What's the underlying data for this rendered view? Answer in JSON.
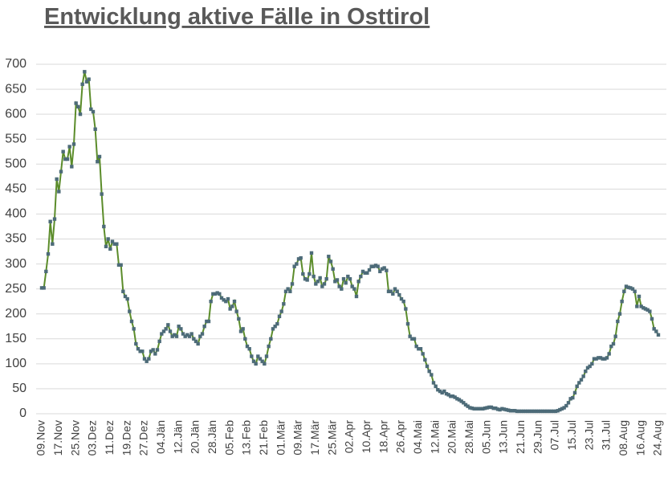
{
  "chart_data": {
    "type": "line",
    "title": "Entwicklung aktive Fälle in Osttirol",
    "categories": [
      "09.Nov",
      null,
      null,
      null,
      null,
      null,
      null,
      null,
      "17.Nov",
      null,
      null,
      null,
      null,
      null,
      null,
      null,
      "25.Nov",
      null,
      null,
      null,
      null,
      null,
      null,
      null,
      "03.Dez",
      null,
      null,
      null,
      null,
      null,
      null,
      null,
      "11.Dez",
      null,
      null,
      null,
      null,
      null,
      null,
      null,
      "19.Dez",
      null,
      null,
      null,
      null,
      null,
      null,
      null,
      "27.Dez",
      null,
      null,
      null,
      null,
      null,
      null,
      null,
      "04.Jän",
      null,
      null,
      null,
      null,
      null,
      null,
      null,
      "12.Jän",
      null,
      null,
      null,
      null,
      null,
      null,
      null,
      "20.Jän",
      null,
      null,
      null,
      null,
      null,
      null,
      null,
      "28.Jän",
      null,
      null,
      null,
      null,
      null,
      null,
      null,
      "05.Feb",
      null,
      null,
      null,
      null,
      null,
      null,
      null,
      "13.Feb",
      null,
      null,
      null,
      null,
      null,
      null,
      null,
      "21.Feb",
      null,
      null,
      null,
      null,
      null,
      null,
      null,
      "01.Mär",
      null,
      null,
      null,
      null,
      null,
      null,
      null,
      "09.Mär",
      null,
      null,
      null,
      null,
      null,
      null,
      null,
      "17.Mär",
      null,
      null,
      null,
      null,
      null,
      null,
      null,
      "25.Mär",
      null,
      null,
      null,
      null,
      null,
      null,
      null,
      "02.Apr",
      null,
      null,
      null,
      null,
      null,
      null,
      null,
      "10.Apr",
      null,
      null,
      null,
      null,
      null,
      null,
      null,
      "18.Apr",
      null,
      null,
      null,
      null,
      null,
      null,
      null,
      "26.Apr",
      null,
      null,
      null,
      null,
      null,
      null,
      null,
      "04.Mai",
      null,
      null,
      null,
      null,
      null,
      null,
      null,
      "12.Mai",
      null,
      null,
      null,
      null,
      null,
      null,
      null,
      "20.Mai",
      null,
      null,
      null,
      null,
      null,
      null,
      null,
      "28.Mai",
      null,
      null,
      null,
      null,
      null,
      null,
      null,
      "05.Jun",
      null,
      null,
      null,
      null,
      null,
      null,
      null,
      "13.Jun",
      null,
      null,
      null,
      null,
      null,
      null,
      null,
      "21.Jun",
      null,
      null,
      null,
      null,
      null,
      null,
      null,
      "29.Jun",
      null,
      null,
      null,
      null,
      null,
      null,
      null,
      "07.Jul",
      null,
      null,
      null,
      null,
      null,
      null,
      null,
      "15.Jul",
      null,
      null,
      null,
      null,
      null,
      null,
      null,
      "23.Jul",
      null,
      null,
      null,
      null,
      null,
      null,
      null,
      "31.Jul",
      null,
      null,
      null,
      null,
      null,
      null,
      null,
      "08.Aug",
      null,
      null,
      null,
      null,
      null,
      null,
      null,
      "16.Aug",
      null,
      null,
      null,
      null,
      null,
      null,
      null,
      "24.Aug"
    ],
    "values": [
      252,
      252,
      285,
      320,
      385,
      340,
      390,
      470,
      445,
      485,
      525,
      510,
      510,
      535,
      495,
      540,
      622,
      615,
      600,
      660,
      685,
      665,
      670,
      610,
      605,
      570,
      505,
      515,
      440,
      375,
      335,
      350,
      330,
      345,
      340,
      340,
      298,
      298,
      245,
      235,
      230,
      205,
      185,
      170,
      140,
      130,
      125,
      125,
      110,
      105,
      110,
      125,
      128,
      120,
      128,
      145,
      160,
      165,
      170,
      178,
      165,
      155,
      158,
      155,
      175,
      170,
      160,
      155,
      158,
      155,
      160,
      150,
      145,
      140,
      155,
      160,
      175,
      185,
      185,
      225,
      240,
      240,
      242,
      240,
      232,
      228,
      225,
      230,
      210,
      215,
      225,
      205,
      190,
      165,
      170,
      150,
      135,
      130,
      115,
      105,
      100,
      115,
      110,
      105,
      100,
      115,
      135,
      150,
      170,
      175,
      180,
      195,
      205,
      220,
      245,
      250,
      245,
      260,
      295,
      300,
      310,
      312,
      280,
      270,
      268,
      280,
      322,
      275,
      260,
      265,
      272,
      255,
      260,
      270,
      315,
      305,
      290,
      265,
      268,
      255,
      250,
      270,
      262,
      275,
      270,
      255,
      250,
      235,
      265,
      275,
      285,
      282,
      282,
      288,
      295,
      295,
      297,
      295,
      285,
      290,
      292,
      287,
      245,
      245,
      240,
      250,
      245,
      238,
      230,
      225,
      210,
      180,
      155,
      150,
      150,
      135,
      130,
      130,
      120,
      108,
      95,
      85,
      78,
      62,
      55,
      48,
      45,
      42,
      45,
      40,
      38,
      35,
      35,
      33,
      30,
      28,
      25,
      22,
      18,
      15,
      12,
      11,
      10,
      10,
      10,
      10,
      10,
      11,
      12,
      13,
      13,
      11,
      11,
      9,
      8,
      10,
      9,
      8,
      7,
      6,
      6,
      6,
      5,
      5,
      5,
      5,
      5,
      5,
      5,
      5,
      5,
      5,
      5,
      5,
      5,
      5,
      5,
      5,
      5,
      5,
      5,
      6,
      8,
      10,
      12,
      16,
      22,
      30,
      32,
      42,
      55,
      62,
      68,
      75,
      85,
      92,
      95,
      100,
      110,
      110,
      112,
      112,
      110,
      110,
      112,
      120,
      135,
      140,
      155,
      185,
      200,
      225,
      245,
      255,
      253,
      252,
      250,
      245,
      215,
      235,
      215,
      212,
      210,
      208,
      205,
      190,
      170,
      165,
      158
    ],
    "color": "#5b8c2a",
    "marker_color": "#4d6b78",
    "ylim": [
      0,
      700
    ],
    "yticks": [
      0,
      50,
      100,
      150,
      200,
      250,
      300,
      350,
      400,
      450,
      500,
      550,
      600,
      650,
      700
    ],
    "grid": true
  }
}
